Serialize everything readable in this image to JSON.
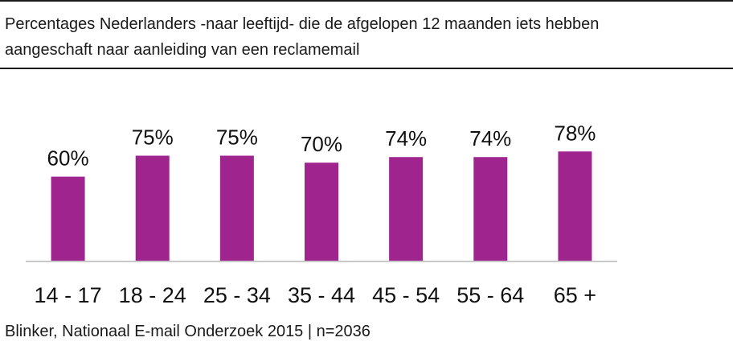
{
  "title_lines": [
    "Percentages Nederlanders -naar leeftijd- die de afgelopen 12 maanden iets hebben",
    "aangeschaft naar aanleiding van een reclamemail"
  ],
  "source": "Blinker, Nationaal E-mail Onderzoek 2015 | n=2036",
  "chart_data": {
    "type": "bar",
    "title": "Percentages Nederlanders -naar leeftijd- die de afgelopen 12 maanden iets hebben aangeschaft naar aanleiding van een reclamemail",
    "categories": [
      "14 - 17",
      "18 - 24",
      "25 - 34",
      "35 - 44",
      "45 - 54",
      "55 - 64",
      "65 +"
    ],
    "values": [
      60,
      75,
      75,
      70,
      74,
      74,
      78
    ],
    "value_labels": [
      "60%",
      "75%",
      "75%",
      "70%",
      "74%",
      "74%",
      "78%"
    ],
    "ylim": [
      0,
      100
    ],
    "xlabel": "",
    "ylabel": "",
    "grid": false,
    "legend": "none",
    "bar_color": "#a0248e"
  }
}
